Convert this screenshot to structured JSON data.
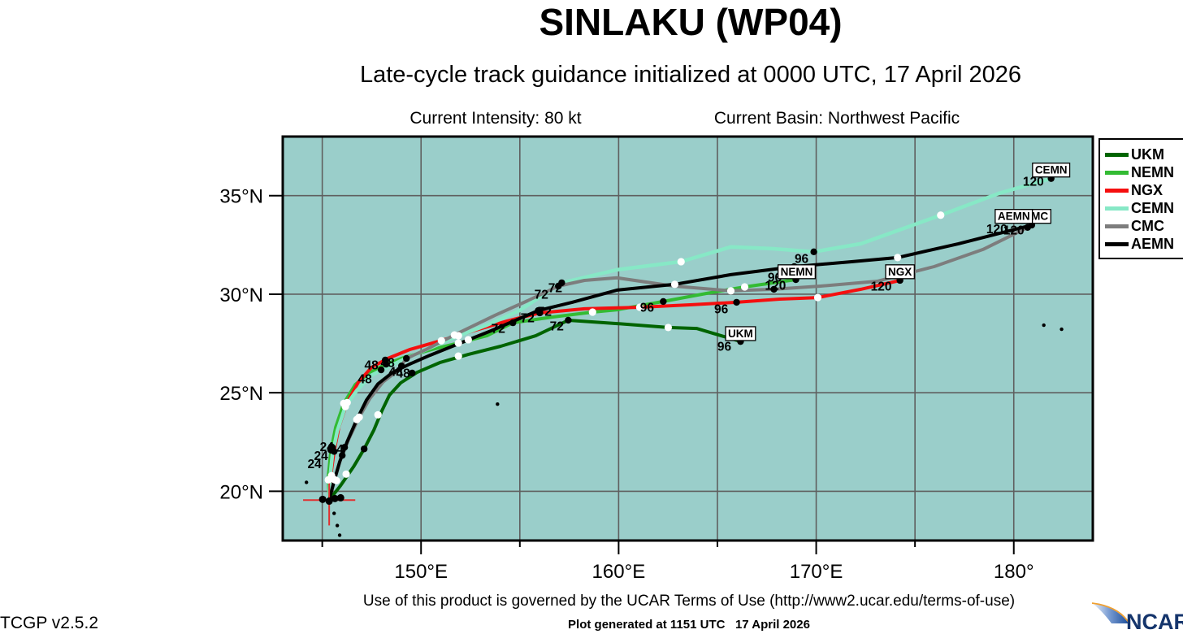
{
  "header": {
    "title": "SINLAKU (WP04)",
    "subtitle": "Late-cycle track guidance initialized at 0000 UTC, 17 April 2026",
    "intensity_label": "Current Intensity: 80 kt",
    "basin_label": "Current Basin: Northwest Pacific"
  },
  "footer": {
    "terms": "Use of this product is governed by the UCAR Terms of Use (http://www2.ucar.edu/terms-of-use)",
    "generated": "Plot generated at 1151 UTC   17 April 2026",
    "version": "TCGP v2.5.2",
    "logo_text": "NCAR"
  },
  "legend": {
    "items": [
      {
        "label": "UKM",
        "color": "#006400"
      },
      {
        "label": "NEMN",
        "color": "#33bb33"
      },
      {
        "label": "NGX",
        "color": "#f50f0f"
      },
      {
        "label": "CEMN",
        "color": "#87e8c6"
      },
      {
        "label": "CMC",
        "color": "#7d7d7d"
      },
      {
        "label": "AEMN",
        "color": "#000000"
      }
    ]
  },
  "chart_data": {
    "type": "line",
    "chart_kind": "tropical-cyclone-track-guidance",
    "title": "SINLAKU (WP04)",
    "subtitle": "Late-cycle track guidance initialized at 0000 UTC, 17 April 2026",
    "axes": {
      "lon_range": [
        143.0,
        184.0
      ],
      "lat_range": [
        17.5,
        38.0
      ],
      "grid_lons": [
        145,
        150,
        155,
        160,
        165,
        170,
        175,
        180
      ],
      "grid_lats": [
        20,
        25,
        30,
        35
      ],
      "x_ticks": [
        {
          "lon": 150,
          "label": "150°E"
        },
        {
          "lon": 160,
          "label": "160°E"
        },
        {
          "lon": 170,
          "label": "170°E"
        },
        {
          "lon": 180,
          "label": "180°"
        }
      ],
      "x_minor_ticks": [
        145,
        155,
        165,
        175
      ],
      "y_ticks": [
        {
          "lat": 20,
          "label": "20°N"
        },
        {
          "lat": 25,
          "label": "25°N"
        },
        {
          "lat": 30,
          "label": "30°N"
        },
        {
          "lat": 35,
          "label": "35°N"
        }
      ],
      "background": "#9aceca",
      "grid_color": "#5f5f5f",
      "border_color": "#000000"
    },
    "initial_position": {
      "lon": 145.35,
      "lat": 19.55,
      "marker": "red-cross",
      "color": "#e03030",
      "arm_west_deg": 1.32,
      "arm_east_deg": 1.32,
      "arm_up_deg": 1.16,
      "arm_down_deg": 1.28
    },
    "start_dots": [
      [
        145.02,
        19.59
      ],
      [
        145.35,
        19.5
      ],
      [
        145.64,
        19.63
      ],
      [
        145.93,
        19.67
      ]
    ],
    "islands": [
      [
        144.2,
        20.45
      ],
      [
        145.6,
        18.88
      ],
      [
        145.76,
        18.26
      ],
      [
        145.88,
        17.77
      ],
      [
        153.87,
        24.42
      ],
      [
        181.52,
        28.43
      ],
      [
        182.42,
        28.22
      ]
    ],
    "series": [
      {
        "name": "UKM",
        "color": "#006400",
        "line_width": 4,
        "points": [
          [
            145.35,
            19.55
          ],
          [
            145.93,
            20.29
          ],
          [
            146.58,
            21.24
          ],
          [
            147.12,
            22.15
          ],
          [
            147.61,
            23.1
          ],
          [
            148.02,
            24.09
          ],
          [
            148.4,
            24.88
          ],
          [
            148.97,
            25.5
          ],
          [
            149.79,
            26.03
          ],
          [
            150.95,
            26.53
          ],
          [
            152.39,
            26.94
          ],
          [
            154.03,
            27.36
          ],
          [
            155.8,
            27.89
          ],
          [
            157.45,
            28.68
          ],
          [
            159.92,
            28.51
          ],
          [
            162.51,
            28.31
          ],
          [
            163.95,
            28.26
          ],
          [
            166.17,
            27.6
          ]
        ],
        "markers": {
          "white": [
            [
              146.21,
              20.87
            ],
            [
              147.82,
              23.88
            ],
            [
              151.89,
              26.86
            ],
            [
              162.51,
              28.31
            ]
          ],
          "black": [
            [
              147.12,
              22.15
            ],
            [
              149.55,
              26.0
            ],
            [
              157.45,
              28.68
            ],
            [
              166.17,
              27.6
            ]
          ]
        },
        "end_label": {
          "text": "UKM",
          "lon": 166.17,
          "lat": 28.02
        }
      },
      {
        "name": "NEMN",
        "color": "#33bb33",
        "line_width": 4,
        "points": [
          [
            145.35,
            19.55
          ],
          [
            145.31,
            20.79
          ],
          [
            145.43,
            22.02
          ],
          [
            145.68,
            23.26
          ],
          [
            146.09,
            24.46
          ],
          [
            146.67,
            25.41
          ],
          [
            147.41,
            26.03
          ],
          [
            148.23,
            26.45
          ],
          [
            149.22,
            26.82
          ],
          [
            150.53,
            27.19
          ],
          [
            151.89,
            27.52
          ],
          [
            153.33,
            27.89
          ],
          [
            154.65,
            28.55
          ],
          [
            156.63,
            28.84
          ],
          [
            158.68,
            29.09
          ],
          [
            159.92,
            29.21
          ],
          [
            162.26,
            29.63
          ],
          [
            164.44,
            30.04
          ],
          [
            166.38,
            30.37
          ],
          [
            168.97,
            30.74
          ]
        ],
        "markers": {
          "white": [
            [
              145.47,
              20.66
            ],
            [
              146.09,
              24.46
            ],
            [
              151.89,
              27.52
            ],
            [
              158.68,
              29.09
            ],
            [
              166.38,
              30.37
            ]
          ],
          "black": [
            [
              145.47,
              22.26
            ],
            [
              148.23,
              26.45
            ],
            [
              154.65,
              28.55
            ],
            [
              162.26,
              29.63
            ],
            [
              168.97,
              30.74
            ]
          ]
        },
        "end_label": {
          "text": "NEMN",
          "lon": 169.01,
          "lat": 31.16
        }
      },
      {
        "name": "NGX",
        "color": "#f50f0f",
        "line_width": 4,
        "points": [
          [
            145.35,
            19.55
          ],
          [
            145.43,
            20.79
          ],
          [
            145.6,
            22.02
          ],
          [
            145.84,
            23.26
          ],
          [
            146.26,
            24.5
          ],
          [
            146.83,
            25.54
          ],
          [
            147.49,
            26.28
          ],
          [
            148.31,
            26.74
          ],
          [
            149.42,
            27.19
          ],
          [
            150.86,
            27.6
          ],
          [
            152.51,
            28.1
          ],
          [
            154.36,
            28.64
          ],
          [
            156.01,
            29.05
          ],
          [
            158.27,
            29.26
          ],
          [
            161.07,
            29.34
          ],
          [
            163.62,
            29.46
          ],
          [
            165.97,
            29.59
          ],
          [
            168.15,
            29.75
          ],
          [
            170.08,
            29.83
          ],
          [
            172.26,
            30.25
          ],
          [
            174.24,
            30.7
          ]
        ],
        "markers": {
          "white": [
            [
              145.47,
              20.79
            ],
            [
              146.26,
              24.5
            ],
            [
              151.03,
              27.64
            ],
            [
              161.07,
              29.34
            ],
            [
              170.08,
              29.83
            ]
          ],
          "black": [
            [
              145.6,
              22.02
            ],
            [
              148.19,
              26.66
            ],
            [
              156.01,
              29.05
            ],
            [
              165.97,
              29.59
            ],
            [
              174.24,
              30.7
            ]
          ]
        },
        "end_label": {
          "text": "NGX",
          "lon": 174.24,
          "lat": 31.16
        }
      },
      {
        "name": "CEMN",
        "color": "#87e8c6",
        "line_width": 4.5,
        "points": [
          [
            145.35,
            19.55
          ],
          [
            145.39,
            20.66
          ],
          [
            145.51,
            21.82
          ],
          [
            145.76,
            23.06
          ],
          [
            146.17,
            24.3
          ],
          [
            146.75,
            25.12
          ],
          [
            147.45,
            25.87
          ],
          [
            148.27,
            26.28
          ],
          [
            149.22,
            26.74
          ],
          [
            150.45,
            27.27
          ],
          [
            151.89,
            27.89
          ],
          [
            153.33,
            28.43
          ],
          [
            154.98,
            29.17
          ],
          [
            157.12,
            30.58
          ],
          [
            159.92,
            31.24
          ],
          [
            163.16,
            31.65
          ],
          [
            165.68,
            32.4
          ],
          [
            167.74,
            32.31
          ],
          [
            169.88,
            32.15
          ],
          [
            172.26,
            32.56
          ],
          [
            176.3,
            34.01
          ],
          [
            179.26,
            35.12
          ],
          [
            181.89,
            35.87
          ]
        ],
        "markers": {
          "white": [
            [
              145.31,
              20.58
            ],
            [
              146.17,
              24.3
            ],
            [
              151.89,
              27.89
            ],
            [
              163.16,
              31.65
            ],
            [
              176.3,
              34.01
            ]
          ],
          "black": [
            [
              145.43,
              22.1
            ],
            [
              147.98,
              26.16
            ],
            [
              157.12,
              30.58
            ],
            [
              169.88,
              32.15
            ],
            [
              181.89,
              35.87
            ]
          ]
        },
        "end_label": {
          "text": "CEMN",
          "lon": 181.89,
          "lat": 36.32
        }
      },
      {
        "name": "CMC",
        "color": "#7d7d7d",
        "line_width": 4,
        "points": [
          [
            145.35,
            19.55
          ],
          [
            145.6,
            20.58
          ],
          [
            145.93,
            21.61
          ],
          [
            146.34,
            22.64
          ],
          [
            146.87,
            23.76
          ],
          [
            147.41,
            24.71
          ],
          [
            148.07,
            25.54
          ],
          [
            148.81,
            26.12
          ],
          [
            149.26,
            26.74
          ],
          [
            150.25,
            27.19
          ],
          [
            151.69,
            27.93
          ],
          [
            153.74,
            28.93
          ],
          [
            155.39,
            29.67
          ],
          [
            156.95,
            30.41
          ],
          [
            158.27,
            30.7
          ],
          [
            159.92,
            30.83
          ],
          [
            162.8,
            30.41
          ],
          [
            165.68,
            30.17
          ],
          [
            167.86,
            30.25
          ],
          [
            170.21,
            30.41
          ],
          [
            173.09,
            30.66
          ],
          [
            175.97,
            31.4
          ],
          [
            178.44,
            32.27
          ],
          [
            180.7,
            33.39
          ]
        ],
        "markers": {
          "white": [
            [
              145.72,
              20.54
            ],
            [
              146.87,
              23.76
            ],
            [
              151.69,
              27.93
            ],
            [
              165.68,
              30.17
            ]
          ],
          "black": [
            [
              146.01,
              21.82
            ],
            [
              149.26,
              26.74
            ],
            [
              156.95,
              30.41
            ],
            [
              167.86,
              30.25
            ],
            [
              180.7,
              33.39
            ]
          ]
        },
        "end_label": {
          "text": "CMC",
          "lon": 181.11,
          "lat": 33.97
        }
      },
      {
        "name": "AEMN",
        "color": "#000000",
        "line_width": 4,
        "points": [
          [
            145.35,
            19.55
          ],
          [
            145.6,
            20.5
          ],
          [
            145.88,
            21.49
          ],
          [
            146.26,
            22.52
          ],
          [
            146.75,
            23.64
          ],
          [
            147.24,
            24.63
          ],
          [
            147.82,
            25.45
          ],
          [
            148.56,
            26.03
          ],
          [
            149.42,
            26.45
          ],
          [
            150.45,
            26.9
          ],
          [
            151.89,
            27.48
          ],
          [
            153.54,
            28.14
          ],
          [
            154.98,
            28.76
          ],
          [
            155.93,
            29.17
          ],
          [
            157.65,
            29.59
          ],
          [
            159.92,
            30.21
          ],
          [
            162.84,
            30.5
          ],
          [
            165.68,
            30.99
          ],
          [
            168.89,
            31.4
          ],
          [
            171.85,
            31.65
          ],
          [
            174.12,
            31.86
          ],
          [
            177.2,
            32.56
          ],
          [
            180.91,
            33.51
          ]
        ],
        "markers": {
          "white": [
            [
              145.64,
              20.58
            ],
            [
              146.75,
              23.64
            ],
            [
              152.39,
              27.69
            ],
            [
              162.84,
              30.5
            ],
            [
              174.12,
              31.86
            ]
          ],
          "black": [
            [
              146.13,
              22.23
            ],
            [
              149.01,
              26.36
            ],
            [
              155.93,
              29.17
            ],
            [
              168.89,
              31.4
            ],
            [
              180.91,
              33.51
            ]
          ]
        },
        "end_label": {
          "text": "AEMN",
          "lon": 180.0,
          "lat": 33.97
        }
      }
    ],
    "hour_labels": [
      {
        "text": "24",
        "pos": [
          145.23,
          22.26
        ]
      },
      {
        "text": "24",
        "pos": [
          144.94,
          21.82
        ]
      },
      {
        "text": "24",
        "pos": [
          144.61,
          21.4
        ]
      },
      {
        "text": "24",
        "pos": [
          145.72,
          22.15
        ]
      },
      {
        "text": "48",
        "pos": [
          147.49,
          26.41
        ]
      },
      {
        "text": "48",
        "pos": [
          148.31,
          26.53
        ]
      },
      {
        "text": "48",
        "pos": [
          148.72,
          26.07
        ]
      },
      {
        "text": "48",
        "pos": [
          149.09,
          25.99
        ]
      },
      {
        "text": "48",
        "pos": [
          147.16,
          25.7
        ]
      },
      {
        "text": "72",
        "pos": [
          156.09,
          30.0
        ]
      },
      {
        "text": "72",
        "pos": [
          156.79,
          30.33
        ]
      },
      {
        "text": "72",
        "pos": [
          155.39,
          28.8
        ]
      },
      {
        "text": "72",
        "pos": [
          156.26,
          29.13
        ]
      },
      {
        "text": "72",
        "pos": [
          153.91,
          28.26
        ]
      },
      {
        "text": "72",
        "pos": [
          156.87,
          28.39
        ]
      },
      {
        "text": "96",
        "pos": [
          161.44,
          29.34
        ]
      },
      {
        "text": "96",
        "pos": [
          165.19,
          29.26
        ]
      },
      {
        "text": "96",
        "pos": [
          169.26,
          31.82
        ]
      },
      {
        "text": "96",
        "pos": [
          167.9,
          30.87
        ]
      },
      {
        "text": "96",
        "pos": [
          165.35,
          27.36
        ]
      },
      {
        "text": "120",
        "pos": [
          167.94,
          30.45
        ]
      },
      {
        "text": "120",
        "pos": [
          173.29,
          30.41
        ]
      },
      {
        "text": "120",
        "pos": [
          180.99,
          35.74
        ]
      },
      {
        "text": "120",
        "pos": [
          179.14,
          33.31
        ]
      },
      {
        "text": "120",
        "pos": [
          180.0,
          33.26
        ]
      }
    ]
  }
}
